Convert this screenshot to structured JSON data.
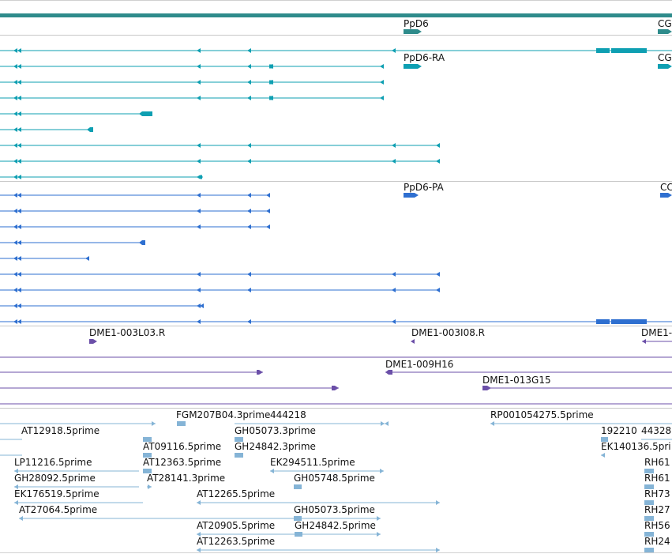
{
  "colors": {
    "gene": "#2e8b8b",
    "transcript_rna": "#0e9fb2",
    "transcript_protein": "#2e6fd0",
    "bac_end": "#6b4fa8",
    "est": "#85b4d6",
    "separator": "#c8c8c8",
    "text": "#111111"
  },
  "tracks": [
    {
      "name": "gene",
      "labels": [
        {
          "id": "g1",
          "text": "PpD6"
        },
        {
          "id": "g2",
          "text": "CG"
        }
      ]
    },
    {
      "name": "transcripts",
      "labels": [
        {
          "id": "t1",
          "text": "PpD6-RA"
        },
        {
          "id": "t2",
          "text": "CG"
        }
      ]
    },
    {
      "name": "proteins",
      "labels": [
        {
          "id": "p1",
          "text": "PpD6-PA"
        },
        {
          "id": "p2",
          "text": "CC"
        }
      ]
    },
    {
      "name": "bac-ends",
      "labels": [
        {
          "id": "b1",
          "text": "DME1-003L03.R"
        },
        {
          "id": "b2",
          "text": "DME1-003I08.R"
        },
        {
          "id": "b3",
          "text": "DME1-"
        },
        {
          "id": "b4",
          "text": "DME1-009H16"
        },
        {
          "id": "b5",
          "text": "DME1-013G15"
        }
      ]
    },
    {
      "name": "ests",
      "labels": [
        {
          "id": "e1",
          "text": "FGM207B04.3prime"
        },
        {
          "id": "e2",
          "text": "444218"
        },
        {
          "id": "e3",
          "text": "RP001054275.5prime"
        },
        {
          "id": "e4",
          "text": "AT12918.5prime"
        },
        {
          "id": "e5",
          "text": "GH05073.3prime"
        },
        {
          "id": "e6",
          "text": "192210"
        },
        {
          "id": "e7",
          "text": "44328"
        },
        {
          "id": "e8",
          "text": "AT09116.5prime"
        },
        {
          "id": "e9",
          "text": "GH24842.3prime"
        },
        {
          "id": "e10",
          "text": "EK140136.5pri"
        },
        {
          "id": "e11",
          "text": "LP11216.5prime"
        },
        {
          "id": "e12",
          "text": "AT12363.5prime"
        },
        {
          "id": "e13",
          "text": "EK294511.5prime"
        },
        {
          "id": "e14",
          "text": "RH61"
        },
        {
          "id": "e15",
          "text": "GH28092.5prime"
        },
        {
          "id": "e16",
          "text": "AT28141.3prime"
        },
        {
          "id": "e17",
          "text": "GH05748.5prime"
        },
        {
          "id": "e18",
          "text": "RH61"
        },
        {
          "id": "e19",
          "text": "EK176519.5prime"
        },
        {
          "id": "e20",
          "text": "AT12265.5prime"
        },
        {
          "id": "e21",
          "text": "RH73"
        },
        {
          "id": "e22",
          "text": "AT27064.5prime"
        },
        {
          "id": "e23",
          "text": "GH05073.5prime"
        },
        {
          "id": "e24",
          "text": "RH27"
        },
        {
          "id": "e25",
          "text": "AT20905.5prime"
        },
        {
          "id": "e26",
          "text": "GH24842.5prime"
        },
        {
          "id": "e27",
          "text": "RH56"
        },
        {
          "id": "e28",
          "text": "AT12263.5prime"
        },
        {
          "id": "e29",
          "text": "RH24"
        }
      ]
    }
  ]
}
